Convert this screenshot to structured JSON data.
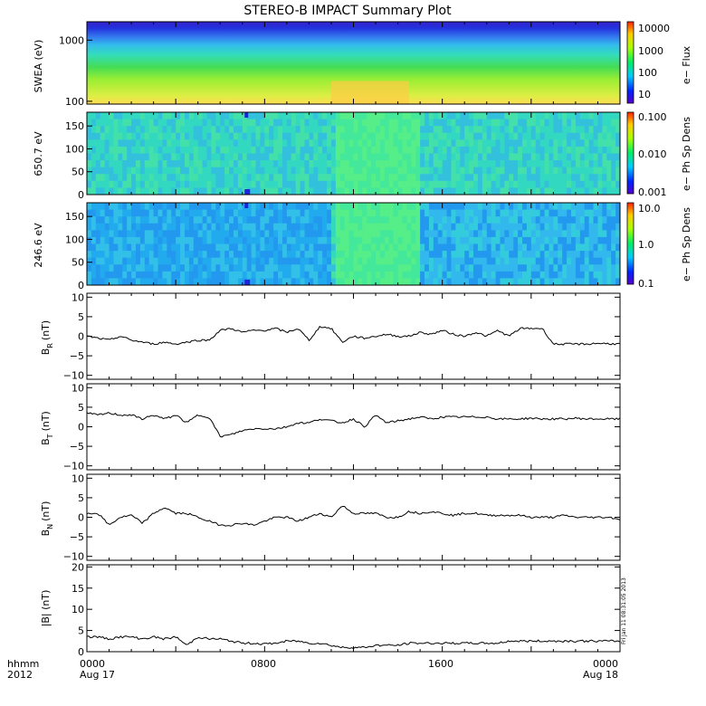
{
  "title": "STEREO-B IMPACT Summary Plot",
  "time_axis": {
    "row1_label": "hhmm",
    "row2_label": "2012",
    "ticks": [
      {
        "hhmm": "0000",
        "date": "Aug 17"
      },
      {
        "hhmm": "0800",
        "date": ""
      },
      {
        "hhmm": "1600",
        "date": ""
      },
      {
        "hhmm": "0000",
        "date": "Aug 18"
      }
    ]
  },
  "stamp": "Fri Jan 11 08:31:05 2013",
  "colors": {
    "line": "#000000",
    "frame": "#000000",
    "background": "#ffffff"
  },
  "chart_data": [
    {
      "type": "heatmap",
      "id": "swea",
      "ylabel": "SWEA (eV)",
      "yscale": "log",
      "ylim": [
        90,
        2000
      ],
      "yticks": [
        "1000",
        "100"
      ],
      "colorbar": {
        "label": "e− Flux",
        "scale": "log",
        "ticks": [
          "10000",
          "1000",
          "100",
          "10"
        ]
      },
      "description_values": {
        "energy_band_fluxes": [
          [
            100,
            2000
          ],
          [
            300,
            200
          ],
          [
            600,
            60
          ],
          [
            1500,
            8
          ]
        ]
      }
    },
    {
      "type": "heatmap",
      "id": "pad650",
      "ylabel": "650.7 eV",
      "ylim": [
        0,
        180
      ],
      "yticks": [
        "150",
        "100",
        "50",
        "0"
      ],
      "colorbar": {
        "label": "e− Ph Sp Dens",
        "scale": "log",
        "ticks": [
          "0.100",
          "0.010",
          "0.001"
        ]
      }
    },
    {
      "type": "heatmap",
      "id": "pad246",
      "ylabel": "246.6 eV",
      "ylim": [
        0,
        180
      ],
      "yticks": [
        "150",
        "100",
        "50",
        "0"
      ],
      "colorbar": {
        "label": "e− Ph Sp Dens",
        "scale": "log",
        "ticks": [
          "10.0",
          "1.0",
          "0.1"
        ]
      }
    },
    {
      "type": "line",
      "id": "br",
      "ylabel": "B",
      "ysub": "R",
      "yunit": "(nT)",
      "ylim": [
        -11,
        11
      ],
      "yticks": [
        "10",
        "5",
        "0",
        "−5",
        "−10"
      ],
      "x_hours": [
        0,
        0.5,
        1,
        1.5,
        2,
        2.5,
        3,
        3.5,
        4,
        4.5,
        5,
        5.5,
        6,
        6.5,
        7,
        7.5,
        8,
        8.5,
        9,
        9.5,
        10,
        10.5,
        11,
        11.5,
        12,
        12.5,
        13,
        13.5,
        14,
        14.5,
        15,
        15.5,
        16,
        16.5,
        17,
        17.5,
        18,
        18.5,
        19,
        19.5,
        20,
        20.5,
        21,
        21.5,
        22,
        22.5,
        23,
        23.5,
        24
      ],
      "values": [
        0,
        -0.5,
        -1,
        0,
        -1,
        -1.5,
        -2,
        -1.5,
        -2,
        -1.5,
        -1,
        -1,
        1.5,
        2,
        1,
        1.5,
        1.5,
        2,
        1,
        2,
        -1,
        2.5,
        2,
        -1.5,
        0,
        -0.5,
        0,
        0.5,
        0,
        0,
        1,
        0.5,
        1.5,
        0.5,
        0,
        1,
        0,
        1.5,
        0,
        2,
        2,
        2,
        -2,
        -2,
        -2,
        -2,
        -1.8,
        -1.9,
        -2
      ]
    },
    {
      "type": "line",
      "id": "bt",
      "ylabel": "B",
      "ysub": "T",
      "yunit": "(nT)",
      "ylim": [
        -11,
        11
      ],
      "yticks": [
        "10",
        "5",
        "0",
        "−5",
        "−10"
      ],
      "x_hours": [
        0,
        0.5,
        1,
        1.5,
        2,
        2.5,
        3,
        3.5,
        4,
        4.5,
        5,
        5.5,
        6,
        6.5,
        7,
        7.5,
        8,
        8.5,
        9,
        9.5,
        10,
        10.5,
        11,
        11.5,
        12,
        12.5,
        13,
        13.5,
        14,
        14.5,
        15,
        15.5,
        16,
        16.5,
        17,
        17.5,
        18,
        18.5,
        19,
        19.5,
        20,
        20.5,
        21,
        21.5,
        22,
        22.5,
        23,
        23.5,
        24
      ],
      "values": [
        3.5,
        3,
        3.5,
        3,
        3,
        2,
        3,
        2,
        3,
        1,
        3,
        2.5,
        -2.5,
        -2,
        -1,
        -0.5,
        -0.5,
        -0.5,
        0,
        1,
        1,
        2,
        1.5,
        1,
        2,
        0,
        3,
        1,
        1.5,
        2,
        2.5,
        2,
        2.5,
        2.5,
        2.5,
        2.5,
        2.5,
        2,
        2,
        2,
        2.2,
        2,
        2,
        2,
        2.2,
        2,
        2,
        2,
        2
      ]
    },
    {
      "type": "line",
      "id": "bn",
      "ylabel": "B",
      "ysub": "N",
      "yunit": "(nT)",
      "ylim": [
        -11,
        11
      ],
      "yticks": [
        "10",
        "5",
        "0",
        "−5",
        "−10"
      ],
      "x_hours": [
        0,
        0.5,
        1,
        1.5,
        2,
        2.5,
        3,
        3.5,
        4,
        4.5,
        5,
        5.5,
        6,
        6.5,
        7,
        7.5,
        8,
        8.5,
        9,
        9.5,
        10,
        10.5,
        11,
        11.5,
        12,
        12.5,
        13,
        13.5,
        14,
        14.5,
        15,
        15.5,
        16,
        16.5,
        17,
        17.5,
        18,
        18.5,
        19,
        19.5,
        20,
        20.5,
        21,
        21.5,
        22,
        22.5,
        23,
        23.5,
        24
      ],
      "values": [
        1,
        1,
        -2,
        0,
        0.5,
        -1.5,
        1,
        2.5,
        1,
        1,
        0,
        -1,
        -2,
        -2,
        -1.5,
        -2,
        -1,
        0,
        0,
        -1,
        0,
        1,
        0,
        3,
        1,
        1,
        1,
        0,
        0,
        1.5,
        1,
        1.5,
        1,
        0.5,
        1,
        1,
        0.5,
        0.5,
        0.5,
        0.5,
        0,
        0,
        0,
        0.5,
        0,
        0,
        0,
        0,
        -0.5
      ]
    },
    {
      "type": "line",
      "id": "bmag",
      "ylabel": "|B| (nT)",
      "ylim": [
        0,
        20.5
      ],
      "yticks": [
        "20",
        "15",
        "10",
        "5",
        "0"
      ],
      "x_hours": [
        0,
        0.5,
        1,
        1.5,
        2,
        2.5,
        3,
        3.5,
        4,
        4.5,
        5,
        5.5,
        6,
        6.5,
        7,
        7.5,
        8,
        8.5,
        9,
        9.5,
        10,
        10.5,
        11,
        11.5,
        12,
        12.5,
        13,
        13.5,
        14,
        14.5,
        15,
        15.5,
        16,
        16.5,
        17,
        17.5,
        18,
        18.5,
        19,
        19.5,
        20,
        20.5,
        21,
        21.5,
        22,
        22.5,
        23,
        23.5,
        24
      ],
      "values": [
        3.5,
        3.5,
        3,
        3.5,
        3.5,
        3,
        3.5,
        3,
        3.5,
        1.5,
        3.5,
        3,
        3,
        2.5,
        2,
        2,
        1.8,
        2,
        2.5,
        2.5,
        2,
        2,
        1.5,
        1,
        1,
        1,
        1.5,
        1.5,
        1.5,
        2,
        2,
        2,
        2,
        2,
        2,
        2,
        2,
        2,
        2.5,
        2.5,
        2.5,
        2.5,
        2.5,
        2.5,
        2.5,
        2.5,
        2.5,
        2.5,
        2.5
      ]
    }
  ]
}
